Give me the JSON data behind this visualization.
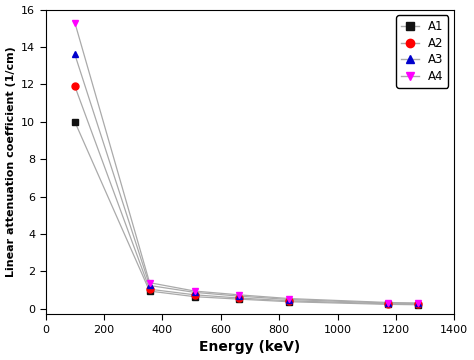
{
  "energy": [
    100,
    356,
    511,
    662,
    835,
    1173,
    1275
  ],
  "A1": [
    10.0,
    0.95,
    0.65,
    0.52,
    0.38,
    0.24,
    0.22
  ],
  "A2": [
    11.9,
    1.05,
    0.75,
    0.58,
    0.43,
    0.27,
    0.25
  ],
  "A3": [
    13.6,
    1.25,
    0.88,
    0.68,
    0.5,
    0.31,
    0.29
  ],
  "A4": [
    15.3,
    1.4,
    0.95,
    0.75,
    0.55,
    0.34,
    0.31
  ],
  "colors": {
    "A1": "#111111",
    "A2": "#ff0000",
    "A3": "#0000cc",
    "A4": "#ff00ff"
  },
  "markers": {
    "A1": "s",
    "A2": "o",
    "A3": "^",
    "A4": "v"
  },
  "line_color": "#aaaaaa",
  "xlabel": "Energy (keV)",
  "ylabel": "Linear attenuation coefficient (1/cm)",
  "xlim": [
    0,
    1400
  ],
  "ylim": [
    -0.3,
    16
  ],
  "yticks": [
    0,
    2,
    4,
    6,
    8,
    10,
    12,
    14,
    16
  ],
  "xticks": [
    0,
    200,
    400,
    600,
    800,
    1000,
    1200,
    1400
  ],
  "figwidth": 4.74,
  "figheight": 3.6,
  "dpi": 100
}
